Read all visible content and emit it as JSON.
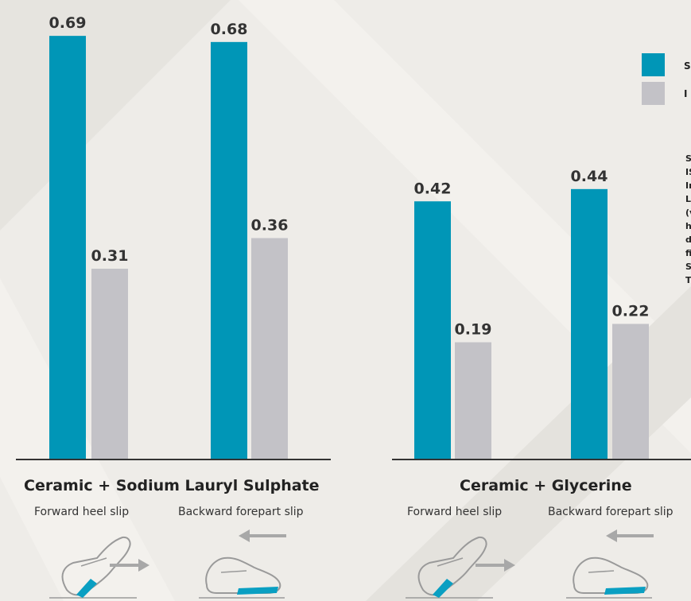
{
  "chart_data": [
    {
      "type": "bar",
      "title": "Ceramic + Sodium Lauryl Sulphate",
      "categories": [
        "Forward heel slip",
        "Backward forepart slip"
      ],
      "series": [
        {
          "name": "S",
          "values": [
            0.69,
            0.68
          ]
        },
        {
          "name": "I",
          "values": [
            0.31,
            0.36
          ]
        }
      ],
      "value_labels": [
        [
          "0.69",
          "0.68"
        ],
        [
          "0.31",
          "0.36"
        ]
      ],
      "ylim": [
        0,
        0.72
      ],
      "grid": false
    },
    {
      "type": "bar",
      "title": "Ceramic + Glycerine",
      "categories": [
        "Forward heel slip",
        "Backward forepart slip"
      ],
      "series": [
        {
          "name": "S",
          "values": [
            0.42,
            0.44
          ]
        },
        {
          "name": "I",
          "values": [
            0.19,
            0.22
          ]
        }
      ],
      "value_labels": [
        [
          "0.42",
          "0.44"
        ],
        [
          "0.19",
          "0.22"
        ]
      ],
      "ylim": [
        0,
        0.72
      ],
      "grid": false
    }
  ],
  "colors": {
    "series_s": "#0096b7",
    "series_i": "#c3c2c7",
    "axis": "#333333",
    "background": "#eeece8",
    "shoe_accent": "#0a9fc2"
  },
  "legend": {
    "placement": "top-right",
    "items": [
      {
        "label": "S",
        "color": "#0096b7"
      },
      {
        "label": "I",
        "color": "#c3c2c7"
      }
    ]
  },
  "note_lines": [
    "S",
    "IS",
    "In",
    "L",
    "(v",
    "h",
    "d",
    "fi",
    "S",
    "T"
  ],
  "icons": [
    "heel-slip-shoe-icon",
    "right-arrow-icon",
    "forepart-slip-shoe-icon",
    "left-arrow-icon"
  ]
}
